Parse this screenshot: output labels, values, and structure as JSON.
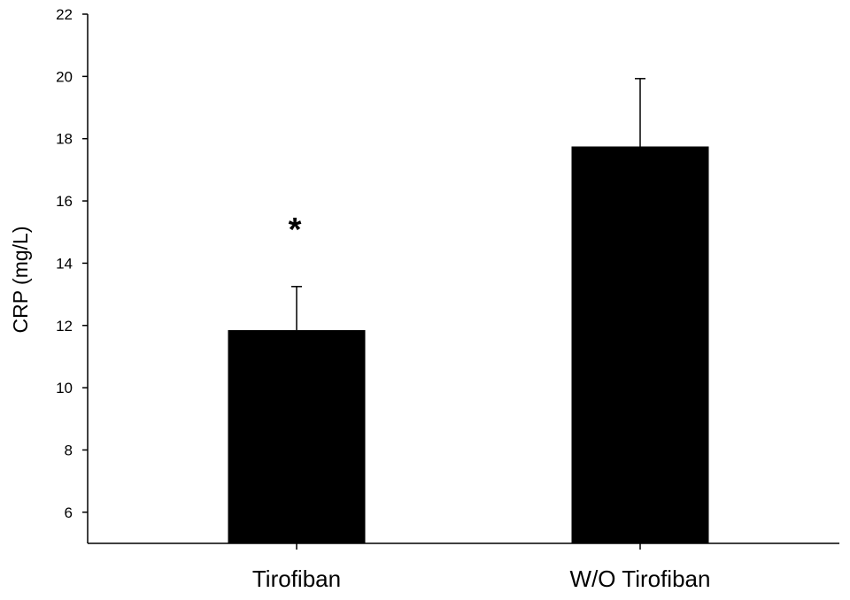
{
  "chart_data": {
    "type": "bar",
    "title": "",
    "xlabel": "",
    "ylabel": "CRP (mg/L)",
    "categories": [
      "Tirofiban",
      "W/O Tirofiban"
    ],
    "values": [
      11.85,
      17.75
    ],
    "error_upper": [
      13.25,
      19.93
    ],
    "annotations": [
      "*",
      ""
    ],
    "ylim": [
      5,
      22
    ],
    "yticks": [
      6,
      8,
      10,
      12,
      14,
      16,
      18,
      20,
      22
    ],
    "grid": false,
    "legend": "none",
    "bar_color": "#000000",
    "axis_color": "#000000"
  }
}
